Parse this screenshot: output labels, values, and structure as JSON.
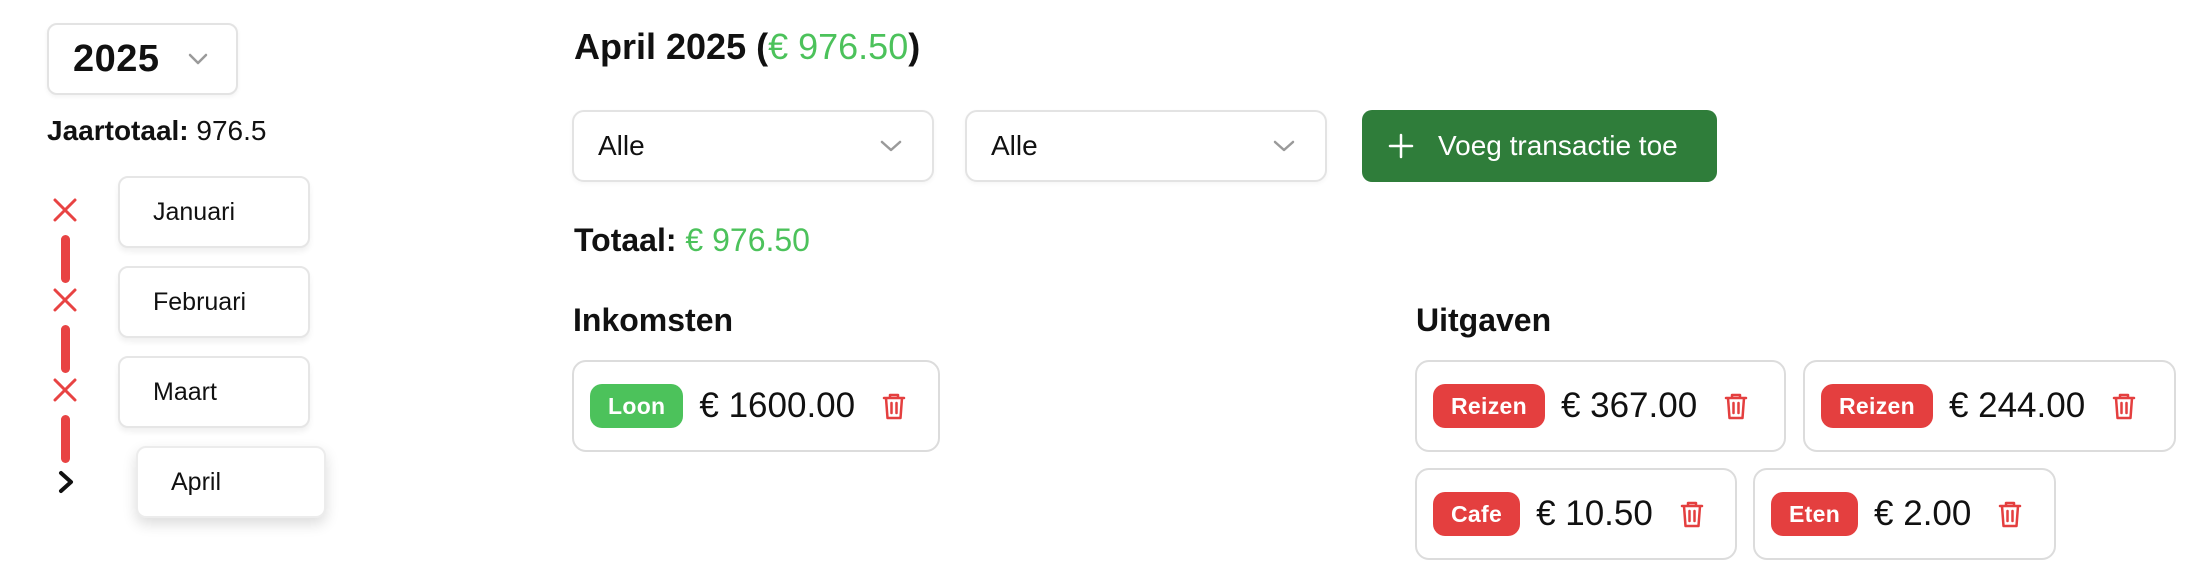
{
  "sidebar": {
    "year": "2025",
    "year_total_label": "Jaartotaal:",
    "year_total_value": "976.5",
    "months": [
      {
        "label": "Januari",
        "status": "removed"
      },
      {
        "label": "Februari",
        "status": "removed"
      },
      {
        "label": "Maart",
        "status": "removed"
      },
      {
        "label": "April",
        "status": "current"
      }
    ]
  },
  "header": {
    "month_title": "April 2025",
    "open_paren": " (",
    "month_total": "€ 976.50",
    "close_paren": ")"
  },
  "filters": {
    "filter_1": "Alle",
    "filter_2": "Alle",
    "add_button_label": "Voeg transactie toe"
  },
  "summary": {
    "total_label": "Totaal:",
    "total_value": "€ 976.50"
  },
  "income": {
    "title": "Inkomsten",
    "items": [
      {
        "category": "Loon",
        "amount": "€ 1600.00"
      }
    ]
  },
  "expenses": {
    "title": "Uitgaven",
    "items": [
      {
        "category": "Reizen",
        "amount": "€ 367.00"
      },
      {
        "category": "Reizen",
        "amount": "€ 244.00"
      },
      {
        "category": "Cafe",
        "amount": "€ 10.50"
      },
      {
        "category": "Eten",
        "amount": "€ 2.00"
      }
    ]
  },
  "colors": {
    "income_green": "#4cc25b",
    "expense_red": "#e43f3f",
    "button_green": "#2f7d3a",
    "timeline_red": "#e84343"
  },
  "icons": [
    "chevron-down-icon",
    "close-icon",
    "chevron-right-icon",
    "plus-icon",
    "trash-icon"
  ]
}
